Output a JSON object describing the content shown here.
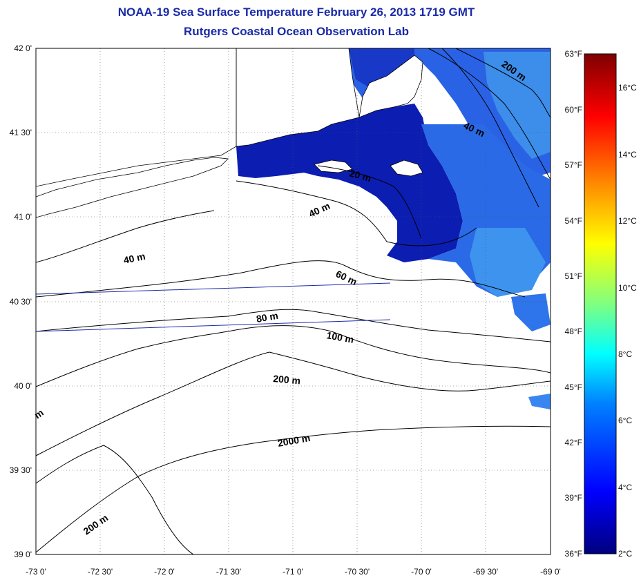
{
  "title": {
    "line1": "NOAA-19 Sea Surface Temperature February 26, 2013 1719 GMT",
    "line2": "Rutgers Coastal Ocean Observation Lab"
  },
  "map": {
    "lat_labels": [
      "42 0'",
      "41 30'",
      "41 0'",
      "40 30'",
      "40 0'",
      "39 30'",
      "39 0'"
    ],
    "lon_labels": [
      "-73 0'",
      "-72 30'",
      "-72 0'",
      "-71 30'",
      "-71 0'",
      "-70 30'",
      "-70 0'",
      "-69 30'",
      "-69 0'"
    ],
    "lat_range": [
      39.0,
      42.0
    ],
    "lon_range": [
      -73.0,
      -69.0
    ],
    "contour_labels": [
      "200 m",
      "40 m",
      "20 m",
      "40 m",
      "40 m",
      "60 m",
      "80 m",
      "100 m",
      "200 m",
      "2000 m",
      "200 m",
      "m"
    ]
  },
  "colorbar": {
    "fahrenheit_labels": [
      "63°F",
      "60°F",
      "57°F",
      "54°F",
      "51°F",
      "48°F",
      "45°F",
      "42°F",
      "39°F",
      "36°F"
    ],
    "celsius_labels": [
      "16°C",
      "14°C",
      "12°C",
      "10°C",
      "8°C",
      "6°C",
      "4°C",
      "2°C"
    ],
    "colors": [
      "#00007f",
      "#0000ff",
      "#007fff",
      "#00ffff",
      "#7fff7f",
      "#ffff00",
      "#ff7f00",
      "#ff0000",
      "#7f0000"
    ]
  },
  "colors": {
    "title": "#1a2aa8",
    "sst_cold": "#0a1bb0",
    "sst_mid": "#1f49e0",
    "sst_warm": "#3a8ef0"
  }
}
